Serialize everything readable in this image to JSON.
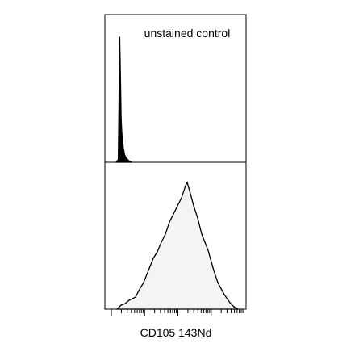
{
  "chart_data": [
    {
      "type": "area",
      "annotation": "unstained control",
      "color": "#000000",
      "fill": "#000000",
      "x": [
        8,
        9.5,
        10,
        10.5,
        11,
        11.5,
        12,
        13,
        14,
        15,
        17,
        19
      ],
      "values": [
        0,
        2,
        40,
        85,
        60,
        30,
        20,
        10,
        5,
        3,
        1,
        0
      ],
      "xlim": [
        0,
        100
      ],
      "ylim": [
        0,
        100
      ]
    },
    {
      "type": "area",
      "x_label": "CD105 143Nd",
      "color": "#000000",
      "fill": "#f4f4f4",
      "x": [
        8.6,
        11.4,
        14.3,
        17.1,
        21.7,
        24,
        27.4,
        29.7,
        32,
        34.3,
        37.1,
        40,
        42.9,
        45.7,
        48.6,
        51.4,
        54.3,
        57.1,
        58.3,
        60.6,
        62.9,
        65.7,
        68.6,
        73.1,
        77.1,
        80,
        84.6,
        88.6,
        91.4,
        94.3
      ],
      "values": [
        0,
        2.7,
        3.8,
        6,
        8.2,
        12.6,
        18.1,
        23.6,
        29.1,
        34.6,
        39,
        45.6,
        51.1,
        59.3,
        64.8,
        70.3,
        75.8,
        84.1,
        86.3,
        78.6,
        70.3,
        62.1,
        51.1,
        40.1,
        26.4,
        18.1,
        9.9,
        4.4,
        1.6,
        0
      ],
      "xlim": [
        0,
        100
      ],
      "ylim": [
        0,
        100
      ]
    }
  ]
}
